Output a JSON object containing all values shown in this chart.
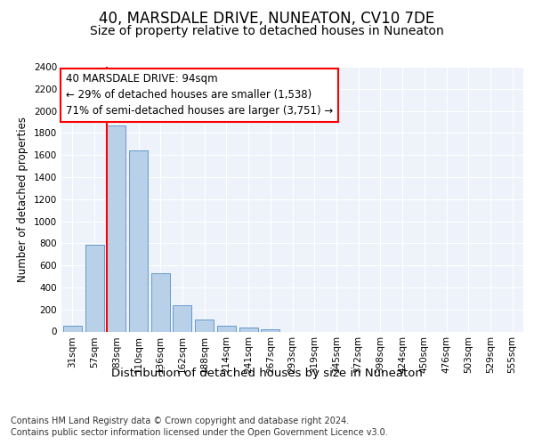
{
  "title": "40, MARSDALE DRIVE, NUNEATON, CV10 7DE",
  "subtitle": "Size of property relative to detached houses in Nuneaton",
  "xlabel": "Distribution of detached houses by size in Nuneaton",
  "ylabel": "Number of detached properties",
  "bar_labels": [
    "31sqm",
    "57sqm",
    "83sqm",
    "110sqm",
    "136sqm",
    "162sqm",
    "188sqm",
    "214sqm",
    "241sqm",
    "267sqm",
    "293sqm",
    "319sqm",
    "345sqm",
    "372sqm",
    "398sqm",
    "424sqm",
    "450sqm",
    "476sqm",
    "503sqm",
    "529sqm",
    "555sqm"
  ],
  "bar_values": [
    55,
    790,
    1870,
    1640,
    530,
    240,
    105,
    55,
    35,
    20,
    0,
    0,
    0,
    0,
    0,
    0,
    0,
    0,
    0,
    0,
    0
  ],
  "bar_color": "#b8d0e8",
  "bar_edge_color": "#6699cc",
  "redline_index": 2,
  "annotation_text": "40 MARSDALE DRIVE: 94sqm\n← 29% of detached houses are smaller (1,538)\n71% of semi-detached houses are larger (3,751) →",
  "ylim": [
    0,
    2400
  ],
  "yticks": [
    0,
    200,
    400,
    600,
    800,
    1000,
    1200,
    1400,
    1600,
    1800,
    2000,
    2200,
    2400
  ],
  "title_fontsize": 12,
  "subtitle_fontsize": 10,
  "annotation_fontsize": 8.5,
  "xlabel_fontsize": 9.5,
  "ylabel_fontsize": 8.5,
  "tick_fontsize": 7.5,
  "footer_line1": "Contains HM Land Registry data © Crown copyright and database right 2024.",
  "footer_line2": "Contains public sector information licensed under the Open Government Licence v3.0.",
  "footer_fontsize": 7,
  "plot_bg_color": "#eef2fa",
  "fig_bg_color": "#ffffff",
  "grid_color": "#ffffff"
}
